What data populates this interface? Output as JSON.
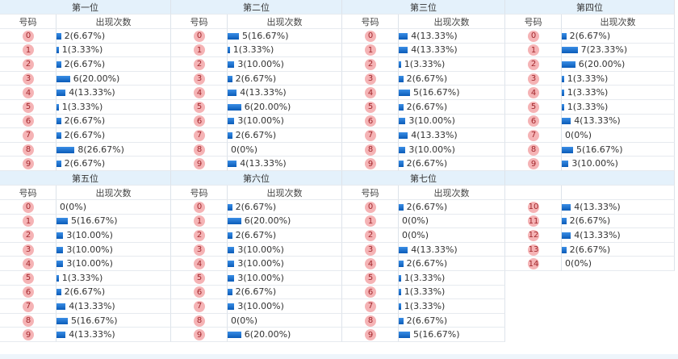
{
  "tables": [
    {
      "title": "第一位",
      "headers": [
        "号码",
        "出现次数"
      ],
      "rows": [
        {
          "num": "0",
          "count": 2,
          "label": "2(6.67%)"
        },
        {
          "num": "1",
          "count": 1,
          "label": "1(3.33%)"
        },
        {
          "num": "2",
          "count": 2,
          "label": "2(6.67%)"
        },
        {
          "num": "3",
          "count": 6,
          "label": "6(20.00%)"
        },
        {
          "num": "4",
          "count": 4,
          "label": "4(13.33%)"
        },
        {
          "num": "5",
          "count": 1,
          "label": "1(3.33%)"
        },
        {
          "num": "6",
          "count": 2,
          "label": "2(6.67%)"
        },
        {
          "num": "7",
          "count": 2,
          "label": "2(6.67%)"
        },
        {
          "num": "8",
          "count": 8,
          "label": "8(26.67%)"
        },
        {
          "num": "9",
          "count": 2,
          "label": "2(6.67%)"
        }
      ]
    },
    {
      "title": "第二位",
      "headers": [
        "号码",
        "出现次数"
      ],
      "rows": [
        {
          "num": "0",
          "count": 5,
          "label": "5(16.67%)"
        },
        {
          "num": "1",
          "count": 1,
          "label": "1(3.33%)"
        },
        {
          "num": "2",
          "count": 3,
          "label": "3(10.00%)"
        },
        {
          "num": "3",
          "count": 2,
          "label": "2(6.67%)"
        },
        {
          "num": "4",
          "count": 4,
          "label": "4(13.33%)"
        },
        {
          "num": "5",
          "count": 6,
          "label": "6(20.00%)"
        },
        {
          "num": "6",
          "count": 3,
          "label": "3(10.00%)"
        },
        {
          "num": "7",
          "count": 2,
          "label": "2(6.67%)"
        },
        {
          "num": "8",
          "count": 0,
          "label": "0(0%)"
        },
        {
          "num": "9",
          "count": 4,
          "label": "4(13.33%)"
        }
      ]
    },
    {
      "title": "第三位",
      "headers": [
        "号码",
        "出现次数"
      ],
      "rows": [
        {
          "num": "0",
          "count": 4,
          "label": "4(13.33%)"
        },
        {
          "num": "1",
          "count": 4,
          "label": "4(13.33%)"
        },
        {
          "num": "2",
          "count": 1,
          "label": "1(3.33%)"
        },
        {
          "num": "3",
          "count": 2,
          "label": "2(6.67%)"
        },
        {
          "num": "4",
          "count": 5,
          "label": "5(16.67%)"
        },
        {
          "num": "5",
          "count": 2,
          "label": "2(6.67%)"
        },
        {
          "num": "6",
          "count": 3,
          "label": "3(10.00%)"
        },
        {
          "num": "7",
          "count": 4,
          "label": "4(13.33%)"
        },
        {
          "num": "8",
          "count": 3,
          "label": "3(10.00%)"
        },
        {
          "num": "9",
          "count": 2,
          "label": "2(6.67%)"
        }
      ]
    },
    {
      "title": "第四位",
      "headers": [
        "号码",
        "出现次数"
      ],
      "rows": [
        {
          "num": "0",
          "count": 2,
          "label": "2(6.67%)"
        },
        {
          "num": "1",
          "count": 7,
          "label": "7(23.33%)"
        },
        {
          "num": "2",
          "count": 6,
          "label": "6(20.00%)"
        },
        {
          "num": "3",
          "count": 1,
          "label": "1(3.33%)"
        },
        {
          "num": "4",
          "count": 1,
          "label": "1(3.33%)"
        },
        {
          "num": "5",
          "count": 1,
          "label": "1(3.33%)"
        },
        {
          "num": "6",
          "count": 4,
          "label": "4(13.33%)"
        },
        {
          "num": "7",
          "count": 0,
          "label": "0(0%)"
        },
        {
          "num": "8",
          "count": 5,
          "label": "5(16.67%)"
        },
        {
          "num": "9",
          "count": 3,
          "label": "3(10.00%)"
        }
      ]
    },
    {
      "title": "第五位",
      "headers": [
        "号码",
        "出现次数"
      ],
      "rows": [
        {
          "num": "0",
          "count": 0,
          "label": "0(0%)"
        },
        {
          "num": "1",
          "count": 5,
          "label": "5(16.67%)"
        },
        {
          "num": "2",
          "count": 3,
          "label": "3(10.00%)"
        },
        {
          "num": "3",
          "count": 3,
          "label": "3(10.00%)"
        },
        {
          "num": "4",
          "count": 3,
          "label": "3(10.00%)"
        },
        {
          "num": "5",
          "count": 1,
          "label": "1(3.33%)"
        },
        {
          "num": "6",
          "count": 2,
          "label": "2(6.67%)"
        },
        {
          "num": "7",
          "count": 4,
          "label": "4(13.33%)"
        },
        {
          "num": "8",
          "count": 5,
          "label": "5(16.67%)"
        },
        {
          "num": "9",
          "count": 4,
          "label": "4(13.33%)"
        }
      ]
    },
    {
      "title": "第六位",
      "headers": [
        "号码",
        "出现次数"
      ],
      "rows": [
        {
          "num": "0",
          "count": 2,
          "label": "2(6.67%)"
        },
        {
          "num": "1",
          "count": 6,
          "label": "6(20.00%)"
        },
        {
          "num": "2",
          "count": 2,
          "label": "2(6.67%)"
        },
        {
          "num": "3",
          "count": 3,
          "label": "3(10.00%)"
        },
        {
          "num": "4",
          "count": 3,
          "label": "3(10.00%)"
        },
        {
          "num": "5",
          "count": 3,
          "label": "3(10.00%)"
        },
        {
          "num": "6",
          "count": 2,
          "label": "2(6.67%)"
        },
        {
          "num": "7",
          "count": 3,
          "label": "3(10.00%)"
        },
        {
          "num": "8",
          "count": 0,
          "label": "0(0%)"
        },
        {
          "num": "9",
          "count": 6,
          "label": "6(20.00%)"
        }
      ]
    },
    {
      "title": "第七位",
      "headers": [
        "号码",
        "出现次数"
      ],
      "rows": [
        {
          "num": "0",
          "count": 2,
          "label": "2(6.67%)"
        },
        {
          "num": "1",
          "count": 0,
          "label": "0(0%)"
        },
        {
          "num": "2",
          "count": 0,
          "label": "0(0%)"
        },
        {
          "num": "3",
          "count": 4,
          "label": "4(13.33%)"
        },
        {
          "num": "4",
          "count": 2,
          "label": "2(6.67%)"
        },
        {
          "num": "5",
          "count": 1,
          "label": "1(3.33%)"
        },
        {
          "num": "6",
          "count": 1,
          "label": "1(3.33%)"
        },
        {
          "num": "7",
          "count": 1,
          "label": "1(3.33%)"
        },
        {
          "num": "8",
          "count": 2,
          "label": "2(6.67%)"
        },
        {
          "num": "9",
          "count": 5,
          "label": "5(16.67%)"
        },
        {
          "num": "10",
          "count": 4,
          "label": "4(13.33%)"
        },
        {
          "num": "11",
          "count": 2,
          "label": "2(6.67%)"
        },
        {
          "num": "12",
          "count": 4,
          "label": "4(13.33%)"
        },
        {
          "num": "13",
          "count": 2,
          "label": "2(6.67%)"
        },
        {
          "num": "14",
          "count": 0,
          "label": "0(0%)"
        }
      ]
    }
  ]
}
